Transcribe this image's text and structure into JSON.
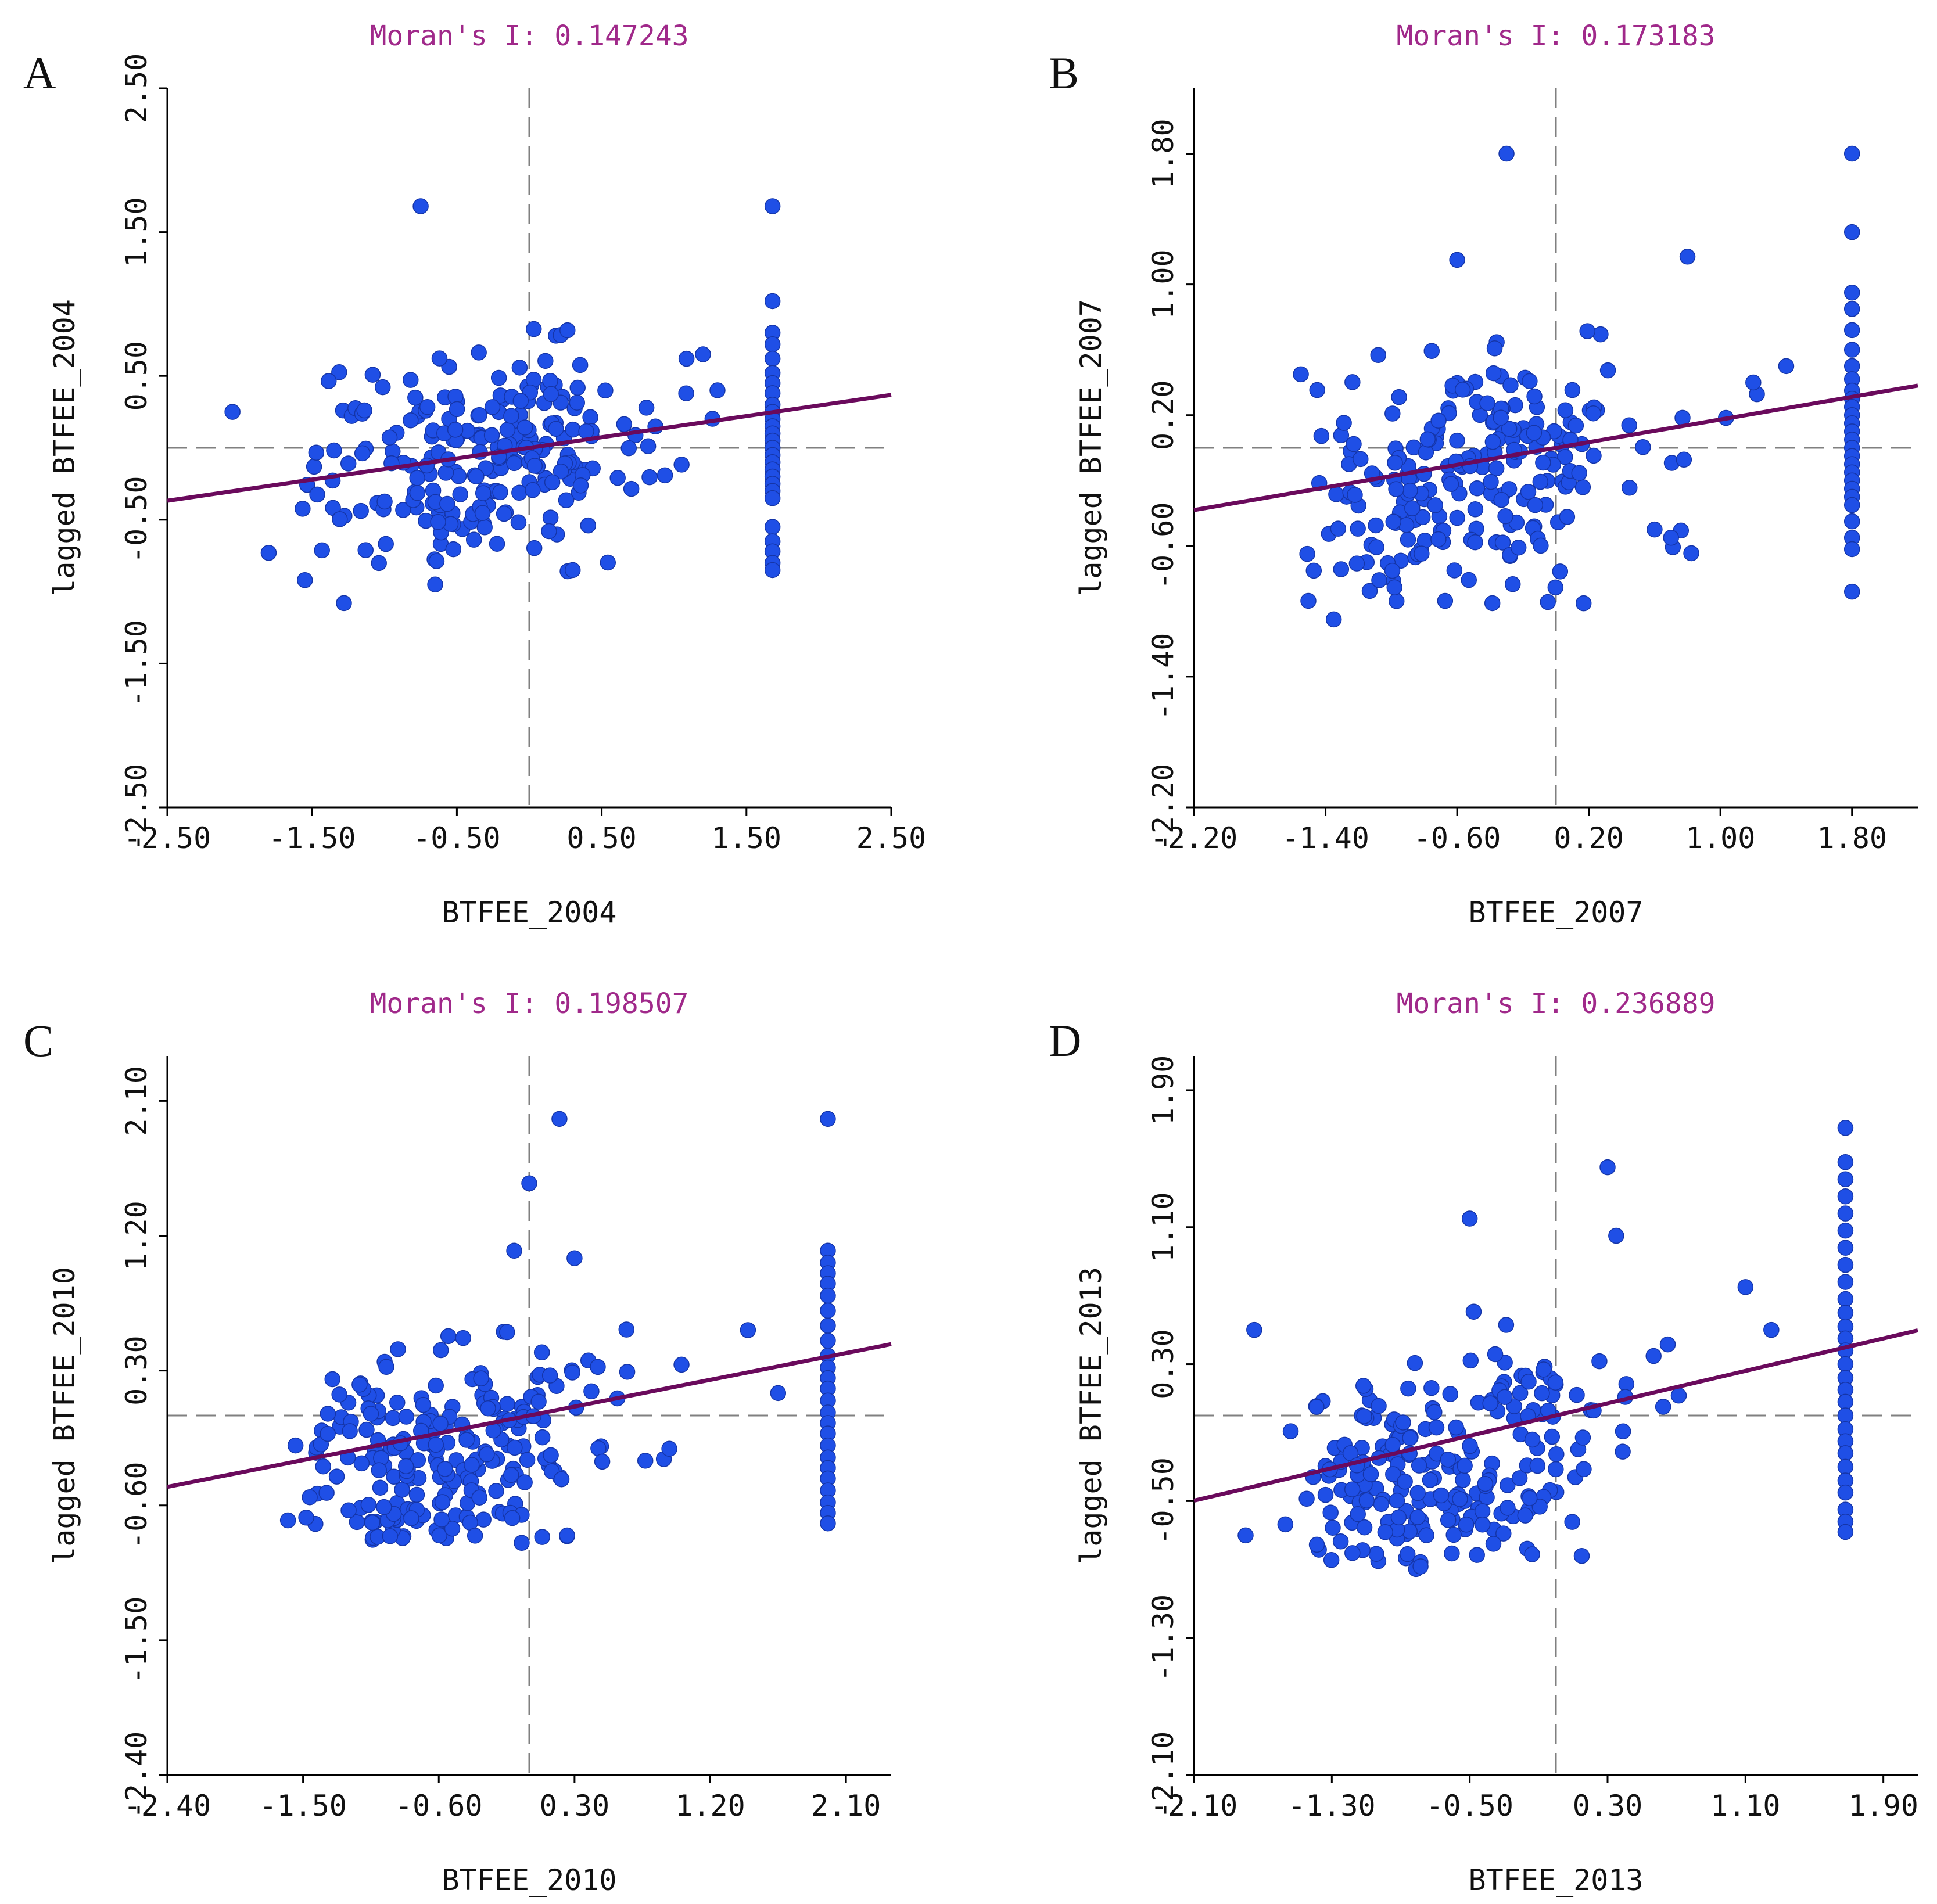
{
  "colors": {
    "point": "#1f4fe6",
    "point_edge": "#1535a8",
    "regression": "#6a0a5c",
    "title": "#a0298a",
    "quadrant_line": "#808080",
    "axis": "#000000"
  },
  "chart_data": [
    {
      "panel": "A",
      "type": "scatter",
      "title": "Moran's I: 0.147243",
      "moran_i": 0.147243,
      "xlabel": "BTFEE_2004",
      "ylabel": "lagged BTFEE_2004",
      "xlim": [
        -2.5,
        2.5
      ],
      "ylim": [
        -2.5,
        2.5
      ],
      "xticks": [
        "-2.50",
        "-1.50",
        "-0.50",
        "0.50",
        "1.50",
        "2.50"
      ],
      "yticks": [
        "-2.50",
        "-1.50",
        "-0.50",
        "0.50",
        "1.50",
        "2.50"
      ],
      "xtick_values": [
        -2.5,
        -1.5,
        -0.5,
        0.5,
        1.5,
        2.5
      ],
      "ytick_values": [
        -2.5,
        -1.5,
        -0.5,
        0.5,
        1.5,
        2.5
      ],
      "slope": 0.147243,
      "column_x": 1.68,
      "column_y": [
        1.68,
        1.02,
        0.8,
        0.72,
        0.62,
        0.52,
        0.45,
        0.38,
        0.3,
        0.25,
        0.2,
        0.15,
        0.1,
        0.05,
        0.0,
        -0.05,
        -0.1,
        -0.15,
        -0.2,
        -0.25,
        -0.3,
        -0.35,
        -0.55,
        -0.65,
        -0.72,
        -0.8,
        -0.85
      ],
      "outliers": [
        [
          -0.75,
          1.68
        ],
        [
          -2.05,
          0.25
        ],
        [
          -1.8,
          -0.73
        ],
        [
          -1.55,
          -0.92
        ],
        [
          -1.28,
          -1.08
        ],
        [
          -0.65,
          -0.95
        ],
        [
          0.3,
          -0.85
        ],
        [
          1.2,
          0.65
        ],
        [
          1.3,
          0.4
        ]
      ],
      "cloud": {
        "x_mean": -0.35,
        "x_sd": 0.62,
        "y_mean": -0.05,
        "y_sd": 0.36,
        "x_min": -1.6,
        "x_max": 1.4,
        "y_min": -0.95,
        "y_max": 0.85,
        "n": 230
      }
    },
    {
      "panel": "B",
      "type": "scatter",
      "title": "Moran's I: 0.173183",
      "moran_i": 0.173183,
      "xlabel": "BTFEE_2007",
      "ylabel": "lagged BTFEE_2007",
      "xlim": [
        -2.2,
        2.2
      ],
      "ylim": [
        -2.2,
        2.2
      ],
      "xticks": [
        "-2.20",
        "-1.40",
        "-0.60",
        "0.20",
        "1.00",
        "1.80"
      ],
      "yticks": [
        "-2.20",
        "-1.40",
        "-0.60",
        "0.20",
        "1.00",
        "1.80"
      ],
      "xtick_values": [
        -2.2,
        -1.4,
        -0.6,
        0.2,
        1.0,
        1.8
      ],
      "ytick_values": [
        -2.2,
        -1.4,
        -0.6,
        0.2,
        1.0,
        1.8
      ],
      "slope": 0.173183,
      "column_x": 1.8,
      "column_y": [
        1.8,
        1.32,
        0.95,
        0.85,
        0.72,
        0.6,
        0.5,
        0.42,
        0.35,
        0.3,
        0.25,
        0.2,
        0.15,
        0.1,
        0.05,
        0.0,
        -0.05,
        -0.1,
        -0.15,
        -0.2,
        -0.25,
        -0.3,
        -0.35,
        -0.45,
        -0.55,
        -0.62,
        -0.88
      ],
      "outliers": [
        [
          -0.3,
          1.8
        ],
        [
          -0.6,
          1.15
        ],
        [
          0.8,
          1.17
        ],
        [
          -1.55,
          0.45
        ],
        [
          1.2,
          0.4
        ],
        [
          1.4,
          0.5
        ],
        [
          -1.35,
          -1.05
        ],
        [
          0.7,
          -0.55
        ],
        [
          0.6,
          -0.5
        ]
      ],
      "cloud": {
        "x_mean": -0.55,
        "x_sd": 0.55,
        "y_mean": -0.2,
        "y_sd": 0.38,
        "x_min": -1.55,
        "x_max": 1.5,
        "y_min": -1.0,
        "y_max": 0.85,
        "n": 230
      }
    },
    {
      "panel": "C",
      "type": "scatter",
      "title": "Moran's I: 0.198507",
      "moran_i": 0.198507,
      "xlabel": "BTFEE_2010",
      "ylabel": "lagged BTFEE_2010",
      "xlim": [
        -2.4,
        2.4
      ],
      "ylim": [
        -2.4,
        2.4
      ],
      "xticks": [
        "-2.40",
        "-1.50",
        "-0.60",
        "0.30",
        "1.20",
        "2.10"
      ],
      "yticks": [
        "-2.40",
        "-1.50",
        "-0.60",
        "0.30",
        "1.20",
        "2.10"
      ],
      "xtick_values": [
        -2.4,
        -1.5,
        -0.6,
        0.3,
        1.2,
        2.1
      ],
      "ytick_values": [
        -2.4,
        -1.5,
        -0.6,
        0.3,
        1.2,
        2.1
      ],
      "slope": 0.198507,
      "column_x": 1.98,
      "column_y": [
        1.98,
        1.1,
        1.02,
        0.95,
        0.88,
        0.8,
        0.7,
        0.6,
        0.5,
        0.4,
        0.32,
        0.25,
        0.18,
        0.1,
        0.02,
        -0.05,
        -0.12,
        -0.2,
        -0.28,
        -0.35,
        -0.42,
        -0.5,
        -0.58,
        -0.65,
        -0.72
      ],
      "outliers": [
        [
          0.2,
          1.98
        ],
        [
          0.0,
          1.55
        ],
        [
          -0.1,
          1.1
        ],
        [
          0.3,
          1.05
        ],
        [
          -1.6,
          -0.7
        ],
        [
          1.45,
          0.57
        ],
        [
          -0.05,
          -0.85
        ],
        [
          1.65,
          0.15
        ],
        [
          -1.55,
          -0.2
        ]
      ],
      "cloud": {
        "x_mean": -0.6,
        "x_sd": 0.6,
        "y_mean": -0.28,
        "y_sd": 0.38,
        "x_min": -1.5,
        "x_max": 1.4,
        "y_min": -0.85,
        "y_max": 0.85,
        "n": 230
      }
    },
    {
      "panel": "D",
      "type": "scatter",
      "title": "Moran's I: 0.236889",
      "moran_i": 0.236889,
      "xlabel": "BTFEE_2013",
      "ylabel": "lagged BTFEE_2013",
      "xlim": [
        -2.1,
        2.1
      ],
      "ylim": [
        -2.1,
        2.1
      ],
      "xticks": [
        "-2.10",
        "-1.30",
        "-0.50",
        "0.30",
        "1.10",
        "1.90"
      ],
      "yticks": [
        "-2.10",
        "-1.30",
        "-0.50",
        "0.30",
        "1.10",
        "1.90"
      ],
      "xtick_values": [
        -2.1,
        -1.3,
        -0.5,
        0.3,
        1.1,
        1.9
      ],
      "ytick_values": [
        -2.1,
        -1.3,
        -0.5,
        0.3,
        1.1,
        1.9
      ],
      "slope": 0.236889,
      "column_x": 1.68,
      "column_y": [
        1.68,
        1.48,
        1.38,
        1.28,
        1.18,
        1.08,
        0.98,
        0.88,
        0.78,
        0.68,
        0.6,
        0.52,
        0.45,
        0.38,
        0.3,
        0.22,
        0.15,
        0.08,
        0.0,
        -0.08,
        -0.15,
        -0.22,
        -0.3,
        -0.38,
        -0.45,
        -0.55,
        -0.62,
        -0.68
      ],
      "outliers": [
        [
          0.3,
          1.45
        ],
        [
          0.35,
          1.05
        ],
        [
          -0.5,
          1.15
        ],
        [
          -1.75,
          0.5
        ],
        [
          -1.8,
          -0.7
        ],
        [
          0.15,
          -0.82
        ],
        [
          1.1,
          0.75
        ],
        [
          1.25,
          0.5
        ]
      ],
      "cloud": {
        "x_mean": -0.65,
        "x_sd": 0.52,
        "y_mean": -0.3,
        "y_sd": 0.34,
        "x_min": -1.6,
        "x_max": 1.35,
        "y_min": -0.9,
        "y_max": 0.85,
        "n": 230
      }
    }
  ]
}
